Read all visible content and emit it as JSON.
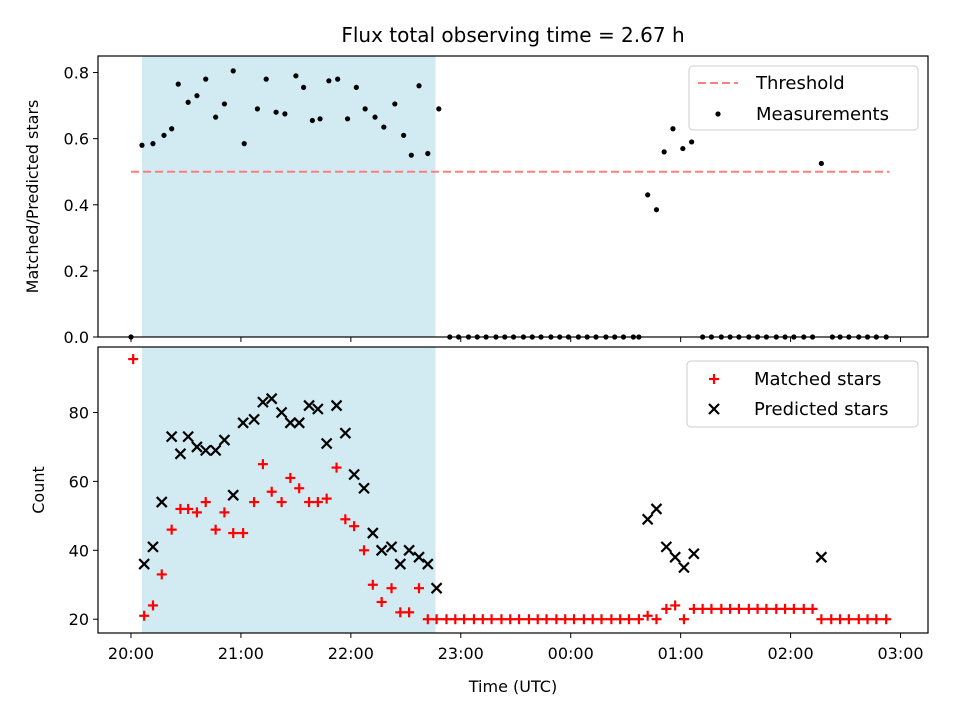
{
  "chart_data": [
    {
      "type": "scatter",
      "title": "Flux total observing time = 2.67 h",
      "xlabel": "",
      "ylabel": "Matched/Predicted stars",
      "xlim": [
        19.7,
        27.25
      ],
      "ylim": [
        0,
        0.85
      ],
      "yticks": [
        0.0,
        0.2,
        0.4,
        0.6,
        0.8
      ],
      "ytick_labels": [
        "0.0",
        "0.2",
        "0.4",
        "0.6",
        "0.8"
      ],
      "shaded_x_range": [
        20.1,
        22.77
      ],
      "shade_color": "#add8e6",
      "legend_placement": "top-right",
      "threshold": {
        "name": "Threshold",
        "y": 0.5,
        "x_range": [
          20.0,
          26.9
        ],
        "color": "#ff7f7f"
      },
      "series": [
        {
          "name": "Measurements",
          "color": "#000000",
          "marker": "dot",
          "points": [
            [
              20.0,
              0.0
            ],
            [
              20.1,
              0.58
            ],
            [
              20.2,
              0.585
            ],
            [
              20.3,
              0.61
            ],
            [
              20.37,
              0.63
            ],
            [
              20.43,
              0.765
            ],
            [
              20.52,
              0.71
            ],
            [
              20.6,
              0.73
            ],
            [
              20.68,
              0.78
            ],
            [
              20.77,
              0.665
            ],
            [
              20.85,
              0.705
            ],
            [
              20.93,
              0.805
            ],
            [
              21.03,
              0.585
            ],
            [
              21.15,
              0.69
            ],
            [
              21.23,
              0.78
            ],
            [
              21.32,
              0.68
            ],
            [
              21.4,
              0.675
            ],
            [
              21.5,
              0.79
            ],
            [
              21.57,
              0.755
            ],
            [
              21.65,
              0.655
            ],
            [
              21.72,
              0.66
            ],
            [
              21.8,
              0.775
            ],
            [
              21.88,
              0.78
            ],
            [
              21.97,
              0.66
            ],
            [
              22.05,
              0.755
            ],
            [
              22.13,
              0.69
            ],
            [
              22.22,
              0.665
            ],
            [
              22.3,
              0.635
            ],
            [
              22.4,
              0.705
            ],
            [
              22.48,
              0.61
            ],
            [
              22.55,
              0.55
            ],
            [
              22.62,
              0.76
            ],
            [
              22.7,
              0.555
            ],
            [
              22.8,
              0.69
            ],
            [
              22.9,
              0.0
            ],
            [
              22.98,
              0.0
            ],
            [
              23.07,
              0.0
            ],
            [
              23.15,
              0.0
            ],
            [
              23.23,
              0.0
            ],
            [
              23.32,
              0.0
            ],
            [
              23.4,
              0.0
            ],
            [
              23.48,
              0.0
            ],
            [
              23.57,
              0.0
            ],
            [
              23.65,
              0.0
            ],
            [
              23.73,
              0.0
            ],
            [
              23.82,
              0.0
            ],
            [
              23.9,
              0.0
            ],
            [
              23.98,
              0.0
            ],
            [
              24.07,
              0.0
            ],
            [
              24.15,
              0.0
            ],
            [
              24.23,
              0.0
            ],
            [
              24.32,
              0.0
            ],
            [
              24.4,
              0.0
            ],
            [
              24.48,
              0.0
            ],
            [
              24.57,
              0.0
            ],
            [
              24.62,
              0.0
            ],
            [
              24.7,
              0.43
            ],
            [
              24.78,
              0.385
            ],
            [
              24.85,
              0.56
            ],
            [
              24.93,
              0.63
            ],
            [
              25.02,
              0.57
            ],
            [
              25.1,
              0.59
            ],
            [
              25.2,
              0.0
            ],
            [
              25.28,
              0.0
            ],
            [
              25.37,
              0.0
            ],
            [
              25.45,
              0.0
            ],
            [
              25.53,
              0.0
            ],
            [
              25.62,
              0.0
            ],
            [
              25.7,
              0.0
            ],
            [
              25.78,
              0.0
            ],
            [
              25.87,
              0.0
            ],
            [
              25.95,
              0.0
            ],
            [
              26.03,
              0.0
            ],
            [
              26.12,
              0.0
            ],
            [
              26.2,
              0.0
            ],
            [
              26.28,
              0.525
            ],
            [
              26.38,
              0.0
            ],
            [
              26.45,
              0.0
            ],
            [
              26.53,
              0.0
            ],
            [
              26.62,
              0.0
            ],
            [
              26.7,
              0.0
            ],
            [
              26.78,
              0.0
            ],
            [
              26.87,
              0.0
            ]
          ]
        }
      ]
    },
    {
      "type": "scatter",
      "title": "",
      "xlabel": "Time (UTC)",
      "ylabel": "Count",
      "xlim": [
        19.7,
        27.25
      ],
      "ylim": [
        16,
        99
      ],
      "yticks": [
        20,
        40,
        60,
        80
      ],
      "ytick_labels": [
        "20",
        "40",
        "60",
        "80"
      ],
      "xticks": [
        20,
        21,
        22,
        23,
        24,
        25,
        26,
        27
      ],
      "xtick_labels": [
        "20:00",
        "21:00",
        "22:00",
        "23:00",
        "00:00",
        "01:00",
        "02:00",
        "03:00"
      ],
      "shaded_x_range": [
        20.1,
        22.77
      ],
      "shade_color": "#add8e6",
      "legend_placement": "top-right",
      "series": [
        {
          "name": "Matched stars",
          "color": "#ff0000",
          "marker": "plus",
          "points": [
            [
              20.02,
              95.5
            ],
            [
              20.12,
              21
            ],
            [
              20.2,
              24
            ],
            [
              20.28,
              33
            ],
            [
              20.37,
              46
            ],
            [
              20.45,
              52
            ],
            [
              20.52,
              52
            ],
            [
              20.6,
              51
            ],
            [
              20.68,
              54
            ],
            [
              20.77,
              46
            ],
            [
              20.85,
              51
            ],
            [
              20.93,
              45
            ],
            [
              21.02,
              45
            ],
            [
              21.12,
              54
            ],
            [
              21.2,
              65
            ],
            [
              21.28,
              57
            ],
            [
              21.37,
              54
            ],
            [
              21.45,
              61
            ],
            [
              21.53,
              58
            ],
            [
              21.62,
              54
            ],
            [
              21.7,
              54
            ],
            [
              21.78,
              55
            ],
            [
              21.87,
              64
            ],
            [
              21.95,
              49
            ],
            [
              22.03,
              47
            ],
            [
              22.12,
              40
            ],
            [
              22.2,
              30
            ],
            [
              22.28,
              25
            ],
            [
              22.37,
              29
            ],
            [
              22.45,
              22
            ],
            [
              22.53,
              22
            ],
            [
              22.62,
              29
            ],
            [
              22.7,
              20
            ],
            [
              22.78,
              20
            ],
            [
              22.87,
              20
            ],
            [
              22.95,
              20
            ],
            [
              23.03,
              20
            ],
            [
              23.12,
              20
            ],
            [
              23.2,
              20
            ],
            [
              23.28,
              20
            ],
            [
              23.37,
              20
            ],
            [
              23.45,
              20
            ],
            [
              23.53,
              20
            ],
            [
              23.62,
              20
            ],
            [
              23.7,
              20
            ],
            [
              23.78,
              20
            ],
            [
              23.87,
              20
            ],
            [
              23.95,
              20
            ],
            [
              24.03,
              20
            ],
            [
              24.12,
              20
            ],
            [
              24.2,
              20
            ],
            [
              24.28,
              20
            ],
            [
              24.37,
              20
            ],
            [
              24.45,
              20
            ],
            [
              24.53,
              20
            ],
            [
              24.62,
              20
            ],
            [
              24.7,
              21
            ],
            [
              24.78,
              20
            ],
            [
              24.87,
              23
            ],
            [
              24.95,
              24
            ],
            [
              25.03,
              20
            ],
            [
              25.12,
              23
            ],
            [
              25.2,
              23
            ],
            [
              25.28,
              23
            ],
            [
              25.37,
              23
            ],
            [
              25.45,
              23
            ],
            [
              25.53,
              23
            ],
            [
              25.62,
              23
            ],
            [
              25.7,
              23
            ],
            [
              25.78,
              23
            ],
            [
              25.87,
              23
            ],
            [
              25.95,
              23
            ],
            [
              26.03,
              23
            ],
            [
              26.12,
              23
            ],
            [
              26.2,
              23
            ],
            [
              26.28,
              20
            ],
            [
              26.37,
              20
            ],
            [
              26.45,
              20
            ],
            [
              26.53,
              20
            ],
            [
              26.62,
              20
            ],
            [
              26.7,
              20
            ],
            [
              26.78,
              20
            ],
            [
              26.87,
              20
            ]
          ]
        },
        {
          "name": "Predicted stars",
          "color": "#000000",
          "marker": "x",
          "points": [
            [
              20.12,
              36
            ],
            [
              20.2,
              41
            ],
            [
              20.28,
              54
            ],
            [
              20.37,
              73
            ],
            [
              20.45,
              68
            ],
            [
              20.52,
              73
            ],
            [
              20.6,
              70
            ],
            [
              20.68,
              69
            ],
            [
              20.77,
              69
            ],
            [
              20.85,
              72
            ],
            [
              20.93,
              56
            ],
            [
              21.02,
              77
            ],
            [
              21.12,
              78
            ],
            [
              21.2,
              83
            ],
            [
              21.28,
              84
            ],
            [
              21.37,
              80
            ],
            [
              21.45,
              77
            ],
            [
              21.53,
              77
            ],
            [
              21.62,
              82
            ],
            [
              21.7,
              81
            ],
            [
              21.78,
              71
            ],
            [
              21.87,
              82
            ],
            [
              21.95,
              74
            ],
            [
              22.03,
              62
            ],
            [
              22.12,
              58
            ],
            [
              22.2,
              45
            ],
            [
              22.28,
              40
            ],
            [
              22.37,
              41
            ],
            [
              22.45,
              36
            ],
            [
              22.53,
              40
            ],
            [
              22.62,
              38
            ],
            [
              22.7,
              36
            ],
            [
              22.78,
              29
            ],
            [
              24.7,
              49
            ],
            [
              24.78,
              52
            ],
            [
              24.87,
              41
            ],
            [
              24.95,
              38
            ],
            [
              25.03,
              35
            ],
            [
              25.12,
              39
            ],
            [
              26.28,
              38
            ]
          ]
        }
      ]
    }
  ]
}
